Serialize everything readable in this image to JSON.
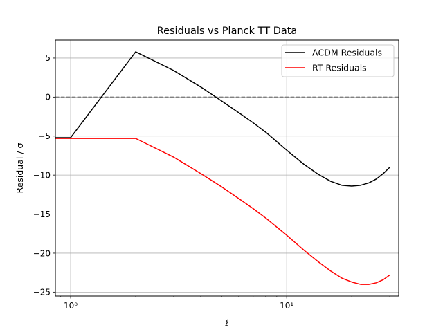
{
  "chart_data": {
    "type": "line",
    "title": "Residuals vs Planck TT Data",
    "xlabel": "ℓ",
    "ylabel": "Residual / σ",
    "x_scale": "log",
    "xlim": [
      0.85,
      33
    ],
    "ylim": [
      -25.5,
      7.3
    ],
    "x_ticks": [
      {
        "value": 1,
        "label": "10⁰"
      },
      {
        "value": 10,
        "label": "10¹"
      }
    ],
    "y_ticks": [
      {
        "value": 5,
        "label": "5"
      },
      {
        "value": 0,
        "label": "0"
      },
      {
        "value": -5,
        "label": "−5"
      },
      {
        "value": -10,
        "label": "−10"
      },
      {
        "value": -15,
        "label": "−15"
      },
      {
        "value": -20,
        "label": "−20"
      },
      {
        "value": -25,
        "label": "−25"
      }
    ],
    "grid": true,
    "legend_position": "top-right",
    "reference_line": {
      "y": 0,
      "style": "dashed",
      "color": "#808080"
    },
    "series": [
      {
        "name": "ΛCDM Residuals",
        "color": "#000000",
        "x": [
          0.85,
          1,
          2,
          3,
          4,
          5,
          6,
          7,
          8,
          10,
          12,
          14,
          16,
          18,
          20,
          22,
          24,
          26,
          28,
          30
        ],
        "y": [
          -5.2,
          -5.2,
          5.8,
          3.4,
          1.3,
          -0.5,
          -2.0,
          -3.3,
          -4.5,
          -6.8,
          -8.6,
          -9.9,
          -10.8,
          -11.3,
          -11.4,
          -11.3,
          -11.0,
          -10.5,
          -9.8,
          -9.0
        ]
      },
      {
        "name": "RT Residuals",
        "color": "#ff0000",
        "x": [
          0.85,
          1,
          2,
          3,
          4,
          5,
          6,
          7,
          8,
          10,
          12,
          14,
          16,
          18,
          20,
          22,
          24,
          26,
          28,
          30
        ],
        "y": [
          -5.3,
          -5.3,
          -5.3,
          -7.7,
          -9.8,
          -11.5,
          -13.0,
          -14.3,
          -15.5,
          -17.7,
          -19.6,
          -21.1,
          -22.3,
          -23.2,
          -23.7,
          -24.0,
          -24.0,
          -23.8,
          -23.4,
          -22.8
        ]
      }
    ]
  }
}
